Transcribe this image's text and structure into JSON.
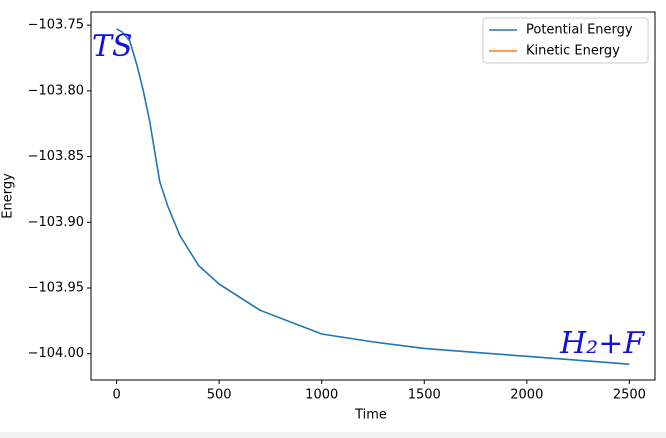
{
  "chart_data": {
    "type": "line",
    "x_label": "Time",
    "y_label": "Energy",
    "x": [
      0,
      25,
      64,
      100,
      130,
      161,
      210,
      250,
      308,
      400,
      500,
      700,
      1000,
      1250,
      1500,
      1750,
      2000,
      2500
    ],
    "series": [
      {
        "name": "Potential Energy",
        "color": "#1f77b4",
        "values": [
          -103.753,
          -103.755,
          -103.762,
          -103.781,
          -103.8,
          -103.823,
          -103.869,
          -103.888,
          -103.91,
          -103.933,
          -103.947,
          -103.967,
          -103.985,
          -103.991,
          -103.996,
          -103.999,
          -104.002,
          -104.008
        ]
      },
      {
        "name": "Kinetic Energy",
        "color": "#ff7f0e",
        "values": [
          null,
          null,
          null,
          null,
          null,
          null,
          null,
          null,
          null,
          null,
          null,
          null,
          null,
          null,
          null,
          null,
          null,
          null
        ]
      }
    ],
    "xlim": [
      -125,
      2625
    ],
    "xticks": [
      0,
      500,
      1000,
      1500,
      2000,
      2500
    ],
    "ylim": [
      -104.02,
      -103.74
    ],
    "yticks": [
      {
        "value": -103.75,
        "label": "−103.75"
      },
      {
        "value": -103.8,
        "label": "−103.80"
      },
      {
        "value": -103.85,
        "label": "−103.85"
      },
      {
        "value": -103.9,
        "label": "−103.90"
      },
      {
        "value": -103.95,
        "label": "−103.95"
      },
      {
        "value": -104.0,
        "label": "−104.00"
      }
    ],
    "legend": "upper right",
    "annotations": [
      "TS",
      "H₂+F"
    ]
  }
}
